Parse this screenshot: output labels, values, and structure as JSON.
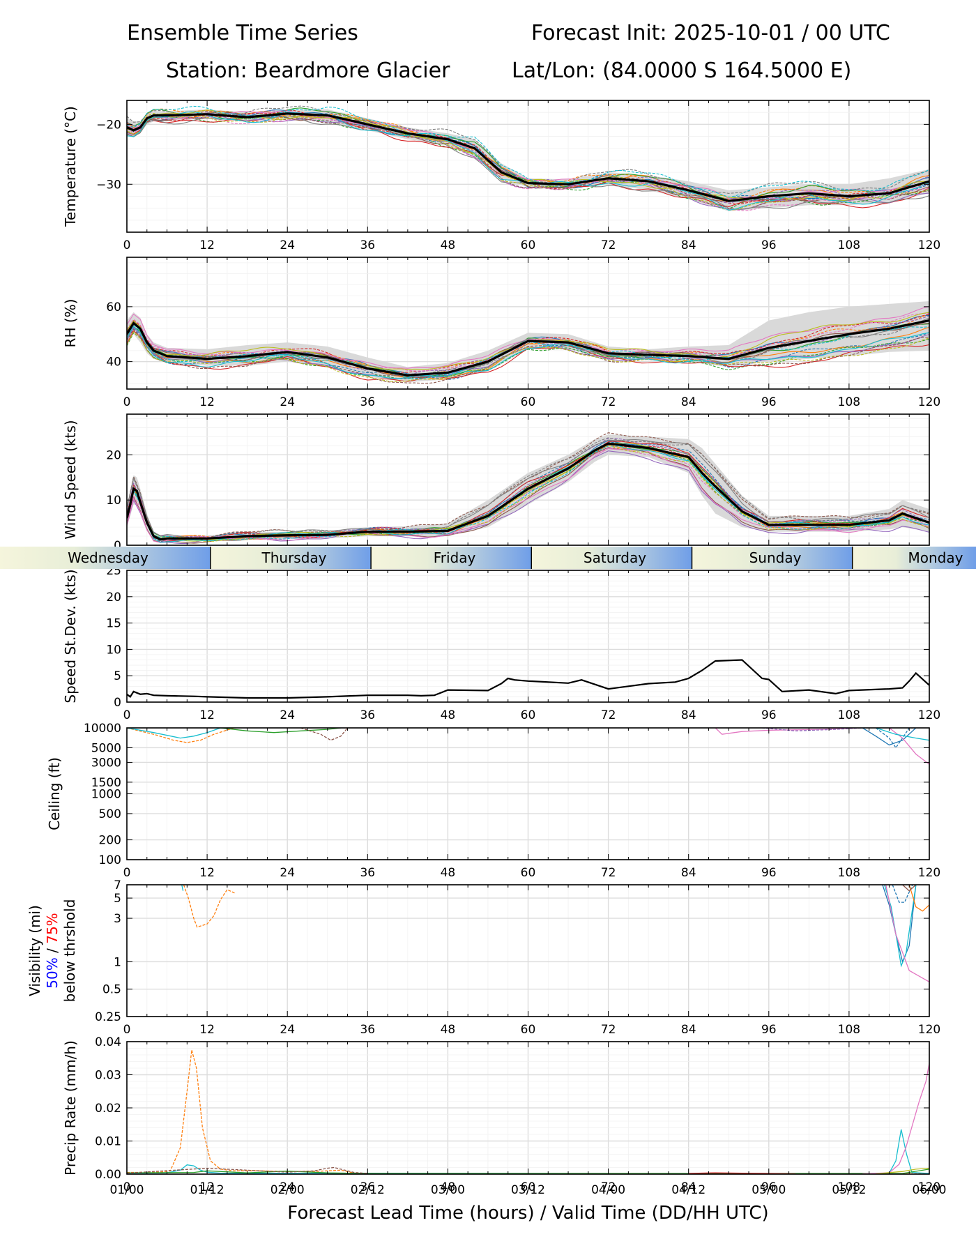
{
  "header": {
    "title_left": "Ensemble Time Series",
    "title_right": "Forecast Init: 2025-10-01 / 00 UTC",
    "station": "Station: Beardmore Glacier",
    "latlon": "Lat/Lon: (84.0000 S 164.5000 E)"
  },
  "day_band": [
    "Wednesday",
    "Thursday",
    "Friday",
    "Saturday",
    "Sunday",
    "Monday"
  ],
  "xlabel": "Forecast Lead Time (hours) / Valid Time (DD/HH UTC)",
  "valid_times": [
    "01/00",
    "01/12",
    "02/00",
    "02/12",
    "03/00",
    "03/12",
    "04/00",
    "04/12",
    "05/00",
    "05/12",
    "06/00"
  ],
  "colors": {
    "mean": "#000000",
    "spread": "#d9d9d9",
    "members": [
      "#1f77b4",
      "#ff7f0e",
      "#2ca02c",
      "#d62728",
      "#9467bd",
      "#8c564b",
      "#e377c2",
      "#7f7f7f",
      "#bcbd22",
      "#17becf"
    ],
    "vis_50": "#0000ff",
    "vis_75": "#ff0000"
  },
  "chart_data": [
    {
      "type": "line",
      "ylabel": "Temperature (°C)",
      "xlim": [
        0,
        120
      ],
      "ylim": [
        -38,
        -16
      ],
      "yticks": [
        -30,
        -20
      ],
      "ytick_labels": [
        "−30",
        "−20"
      ],
      "x": [
        0,
        1,
        2,
        3,
        4,
        6,
        12,
        18,
        24,
        30,
        36,
        42,
        48,
        52,
        56,
        60,
        66,
        72,
        78,
        84,
        90,
        96,
        102,
        108,
        114,
        120
      ],
      "mean": [
        -20.5,
        -21,
        -20.5,
        -19,
        -18.5,
        -18.5,
        -18.3,
        -18.8,
        -18.2,
        -18.5,
        -20,
        -21.5,
        -22.5,
        -24,
        -28,
        -29.8,
        -30,
        -29,
        -29.5,
        -31,
        -32.8,
        -32,
        -31.5,
        -32,
        -31.5,
        -29.5
      ],
      "spread_low": [
        -22,
        -22,
        -21.5,
        -20,
        -19.5,
        -19.5,
        -19,
        -19.5,
        -19,
        -19.5,
        -21,
        -22.5,
        -23.5,
        -25.5,
        -29,
        -30.5,
        -30.8,
        -30,
        -31,
        -32.5,
        -34.5,
        -34,
        -33.5,
        -33.5,
        -33,
        -31.5
      ],
      "spread_high": [
        -19,
        -19.5,
        -19.5,
        -18.3,
        -17.8,
        -17.8,
        -17.5,
        -18,
        -17.5,
        -17.5,
        -19,
        -20.5,
        -21.5,
        -22.5,
        -26.5,
        -29,
        -29.2,
        -28,
        -28.5,
        -29.5,
        -31,
        -30.5,
        -30,
        -30,
        -29,
        -27.5
      ],
      "member_scale": 2.2,
      "member_jitter": 0.6
    },
    {
      "type": "line",
      "ylabel": "RH (%)",
      "xlim": [
        0,
        120
      ],
      "ylim": [
        30,
        78
      ],
      "yticks": [
        40,
        60
      ],
      "ytick_labels": [
        "40",
        "60"
      ],
      "x": [
        0,
        1,
        2,
        3,
        4,
        6,
        12,
        18,
        24,
        30,
        36,
        42,
        48,
        54,
        60,
        66,
        72,
        78,
        84,
        90,
        96,
        102,
        108,
        114,
        120
      ],
      "mean": [
        50,
        54,
        52,
        47,
        44,
        42,
        41,
        42,
        43.5,
        41.5,
        37.5,
        35,
        36,
        40,
        47.5,
        47,
        43,
        42.5,
        42,
        41,
        45,
        47.5,
        50,
        52,
        55
      ],
      "spread_low": [
        46,
        50,
        47,
        43,
        41,
        39.5,
        38.5,
        38.5,
        40,
        38,
        34.5,
        32.5,
        33.5,
        36.5,
        44.5,
        44.5,
        41,
        40.5,
        40,
        38,
        40,
        41,
        42,
        43.5,
        44
      ],
      "spread_high": [
        55,
        58,
        56,
        50,
        47,
        45,
        44.5,
        46,
        47,
        45.5,
        41.5,
        38,
        39.5,
        44,
        50.5,
        50,
        45.5,
        44.5,
        45.5,
        46,
        55,
        58,
        60,
        61,
        62
      ],
      "member_scale": 3.2,
      "member_jitter": 1.0
    },
    {
      "type": "line",
      "ylabel": "Wind Speed (kts)",
      "xlim": [
        0,
        120
      ],
      "ylim": [
        0,
        29
      ],
      "yticks": [
        0,
        10,
        20
      ],
      "ytick_labels": [
        "0",
        "10",
        "20"
      ],
      "x": [
        0,
        0.5,
        1,
        1.5,
        2,
        3,
        4,
        5,
        6,
        12,
        18,
        24,
        30,
        36,
        42,
        48,
        54,
        60,
        66,
        70,
        72,
        78,
        84,
        86,
        88,
        92,
        96,
        102,
        108,
        114,
        116,
        120
      ],
      "mean": [
        6,
        9,
        12.5,
        12,
        9.5,
        5,
        2,
        1.3,
        1.5,
        1.5,
        2,
        2.2,
        2.3,
        3,
        3,
        3.2,
        6.5,
        12.5,
        17,
        21,
        22.5,
        21.5,
        19.5,
        16,
        13,
        7.5,
        4.5,
        4.5,
        4.5,
        5.5,
        7,
        5
      ],
      "spread_low": [
        4,
        6.5,
        9,
        9,
        7,
        3.5,
        1.3,
        0.8,
        0.9,
        0.9,
        1.2,
        1.4,
        1.5,
        2,
        2,
        2,
        4,
        9,
        14,
        18.5,
        20,
        19.5,
        16,
        11,
        7,
        4,
        3,
        3,
        3,
        3.5,
        4,
        3
      ],
      "spread_high": [
        9,
        12,
        15.5,
        15,
        12.5,
        7,
        3,
        2,
        2.2,
        2.2,
        2.8,
        3,
        3.2,
        4,
        4.2,
        4.8,
        10,
        16,
        20,
        23.5,
        24.5,
        24,
        23.5,
        21.5,
        18,
        11,
        6.5,
        6.5,
        6.5,
        8,
        10,
        8
      ],
      "member_scale": 2.6,
      "member_jitter": 0.5
    },
    {
      "type": "line",
      "ylabel": "Speed St.Dev. (kts)",
      "xlim": [
        0,
        120
      ],
      "ylim": [
        0,
        25
      ],
      "yticks": [
        0,
        5,
        10,
        15,
        20,
        25
      ],
      "ytick_labels": [
        "0",
        "5",
        "10",
        "15",
        "20",
        "25"
      ],
      "x": [
        0,
        0.5,
        1,
        2,
        3,
        4,
        6,
        10,
        12,
        18,
        24,
        30,
        36,
        42,
        44,
        46,
        48,
        54,
        56,
        57,
        58,
        60,
        66,
        68,
        72,
        78,
        82,
        84,
        86,
        88,
        92,
        95,
        96,
        98,
        102,
        106,
        108,
        114,
        116,
        117,
        118,
        120
      ],
      "mean": [
        1.5,
        1.0,
        2.0,
        1.5,
        1.6,
        1.3,
        1.2,
        1.1,
        1.0,
        0.8,
        0.8,
        1.0,
        1.3,
        1.3,
        1.2,
        1.3,
        2.3,
        2.2,
        3.5,
        4.5,
        4.2,
        4.0,
        3.6,
        4.2,
        2.5,
        3.5,
        3.8,
        4.5,
        6.0,
        7.8,
        8.0,
        4.5,
        4.3,
        2.0,
        2.3,
        1.6,
        2.2,
        2.5,
        2.7,
        4.0,
        5.5,
        3.2
      ]
    },
    {
      "type": "line",
      "ylabel": "Ceiling (ft)",
      "scale": "log",
      "xlim": [
        0,
        120
      ],
      "ylim": [
        100,
        10000
      ],
      "yticks": [
        100,
        200,
        500,
        1000,
        1500,
        3000,
        5000,
        10000
      ],
      "ytick_labels": [
        "100",
        "200",
        "500",
        "1000",
        "1500",
        "3000",
        "5000",
        "10000"
      ],
      "traces": [
        {
          "color": "#ff7f0e",
          "dash": true,
          "x": [
            0,
            4,
            7,
            9,
            11,
            13,
            16
          ],
          "y": [
            10000,
            8000,
            6500,
            6000,
            6500,
            8000,
            10000
          ]
        },
        {
          "color": "#17becf",
          "dash": false,
          "x": [
            0,
            4,
            8,
            10,
            12,
            14
          ],
          "y": [
            10000,
            8500,
            7000,
            7500,
            8500,
            10000
          ]
        },
        {
          "color": "#2ca02c",
          "dash": false,
          "x": [
            14,
            18,
            22,
            26,
            30,
            32
          ],
          "y": [
            10000,
            9000,
            8500,
            9000,
            9500,
            10000
          ]
        },
        {
          "color": "#8c564b",
          "dash": true,
          "x": [
            26,
            29,
            30.5,
            32,
            33
          ],
          "y": [
            10000,
            8000,
            6500,
            7500,
            10000
          ]
        },
        {
          "color": "#e377c2",
          "dash": false,
          "x": [
            88,
            89,
            92,
            96,
            104,
            110
          ],
          "y": [
            10000,
            8000,
            8800,
            9200,
            9500,
            10000
          ]
        },
        {
          "color": "#9467bd",
          "dash": true,
          "x": [
            95,
            100,
            106,
            110
          ],
          "y": [
            10000,
            9000,
            9500,
            10000
          ]
        },
        {
          "color": "#1f77b4",
          "dash": false,
          "x": [
            110,
            112,
            114,
            116,
            118
          ],
          "y": [
            10000,
            7500,
            5500,
            6500,
            10000
          ]
        },
        {
          "color": "#1f77b4",
          "dash": true,
          "x": [
            112,
            114,
            115,
            116,
            117
          ],
          "y": [
            10000,
            7000,
            5000,
            7000,
            10000
          ]
        },
        {
          "color": "#e377c2",
          "dash": false,
          "x": [
            114,
            116,
            118,
            120
          ],
          "y": [
            10000,
            7000,
            4000,
            2800
          ]
        },
        {
          "color": "#17becf",
          "dash": false,
          "x": [
            112,
            115,
            118,
            120
          ],
          "y": [
            10000,
            8000,
            7000,
            6500
          ]
        }
      ]
    },
    {
      "type": "line",
      "ylabel": "Visibility (mi)",
      "ylabel_50": "50%",
      "ylabel_sep": " / ",
      "ylabel_75": "75%",
      "ylabel_2": "below thrshold",
      "scale": "log",
      "xlim": [
        0,
        120
      ],
      "ylim": [
        0.25,
        7
      ],
      "yticks": [
        0.25,
        0.5,
        1,
        3,
        5,
        7
      ],
      "ytick_labels": [
        "0.25",
        "0.5",
        "1",
        "3",
        "5",
        "7"
      ],
      "traces": [
        {
          "color": "#ff7f0e",
          "dash": true,
          "x": [
            8.5,
            9.2,
            10,
            10.5,
            12,
            13,
            14,
            15,
            16.3
          ],
          "y": [
            7,
            5,
            3,
            2.4,
            2.6,
            3.2,
            4.8,
            6.2,
            5.6
          ]
        },
        {
          "color": "#17becf",
          "dash": false,
          "x": [
            8.2,
            8.4
          ],
          "y": [
            7,
            6
          ]
        },
        {
          "color": "#1f77b4",
          "dash": false,
          "x": [
            113,
            114,
            115,
            116,
            117,
            118
          ],
          "y": [
            7,
            4.2,
            2,
            1,
            1.5,
            7
          ]
        },
        {
          "color": "#17becf",
          "dash": false,
          "x": [
            113.3,
            114.3,
            115.3,
            115.8,
            116.5,
            118
          ],
          "y": [
            7,
            4,
            1.5,
            0.9,
            1.2,
            7
          ]
        },
        {
          "color": "#1f77b4",
          "dash": true,
          "x": [
            114.5,
            115.5,
            116.3,
            117.5
          ],
          "y": [
            7,
            4.5,
            4.5,
            7
          ]
        },
        {
          "color": "#e377c2",
          "dash": false,
          "x": [
            113.5,
            115,
            117,
            120
          ],
          "y": [
            7,
            2,
            0.8,
            0.6
          ]
        },
        {
          "color": "#ff7f0e",
          "dash": false,
          "x": [
            117,
            118,
            119,
            120
          ],
          "y": [
            7,
            4,
            3.6,
            4.2
          ]
        },
        {
          "color": "#8c564b",
          "dash": false,
          "x": [
            116,
            117,
            118
          ],
          "y": [
            7,
            6,
            7
          ]
        }
      ]
    },
    {
      "type": "line",
      "ylabel": "Precip Rate (mm/h)",
      "xlim": [
        0,
        120
      ],
      "ylim": [
        0,
        0.04
      ],
      "yticks": [
        0,
        0.01,
        0.02,
        0.03,
        0.04
      ],
      "ytick_labels": [
        "0.00",
        "0.01",
        "0.02",
        "0.03",
        "0.04"
      ],
      "traces": [
        {
          "color": "#ff7f0e",
          "dash": true,
          "x": [
            0,
            5,
            6.5,
            8,
            9,
            9.7,
            10.4,
            11.3,
            12.5,
            14,
            16,
            20,
            24,
            28,
            30,
            32,
            34,
            40,
            120
          ],
          "y": [
            0.0005,
            0.0006,
            0.001,
            0.008,
            0.025,
            0.0375,
            0.032,
            0.014,
            0.004,
            0.0015,
            0.001,
            0.001,
            0.0008,
            0.0008,
            0.001,
            0.0012,
            0.0003,
            0.0001,
            0.0001
          ]
        },
        {
          "color": "#17becf",
          "dash": false,
          "x": [
            0,
            6,
            8,
            9,
            10,
            11,
            12,
            14,
            112,
            114,
            115,
            115.8,
            116.6,
            117.4,
            120
          ],
          "y": [
            0.0003,
            0.0004,
            0.0012,
            0.0028,
            0.0025,
            0.0012,
            0.0006,
            0.0003,
            0.0001,
            0.0003,
            0.004,
            0.0135,
            0.006,
            0.0005,
            0.0002
          ]
        },
        {
          "color": "#2ca02c",
          "dash": false,
          "x": [
            0,
            10,
            12,
            18,
            24,
            30,
            36,
            116,
            120
          ],
          "y": [
            0.0004,
            0.0005,
            0.001,
            0.0004,
            0.0009,
            0.0004,
            0.0002,
            0.0002,
            0.0015
          ]
        },
        {
          "color": "#8c564b",
          "dash": true,
          "x": [
            0,
            12,
            24,
            28,
            30,
            31,
            32,
            34,
            36
          ],
          "y": [
            0.0003,
            0.0018,
            0.0006,
            0.001,
            0.0018,
            0.002,
            0.0015,
            0.0005,
            0.0002
          ]
        },
        {
          "color": "#e377c2",
          "dash": false,
          "x": [
            110,
            114,
            115.5,
            116.5,
            117.5,
            118.5,
            119.5,
            120
          ],
          "y": [
            0.0001,
            0.0004,
            0.003,
            0.008,
            0.015,
            0.022,
            0.028,
            0.0335
          ]
        },
        {
          "color": "#bcbd22",
          "dash": false,
          "x": [
            112,
            116,
            118,
            120
          ],
          "y": [
            0.0001,
            0.0008,
            0.0015,
            0.0018
          ]
        },
        {
          "color": "#d62728",
          "dash": false,
          "x": [
            84,
            88,
            92,
            96,
            100
          ],
          "y": [
            0.0002,
            0.0004,
            0.0003,
            0.0002,
            0.0001
          ]
        }
      ]
    }
  ]
}
